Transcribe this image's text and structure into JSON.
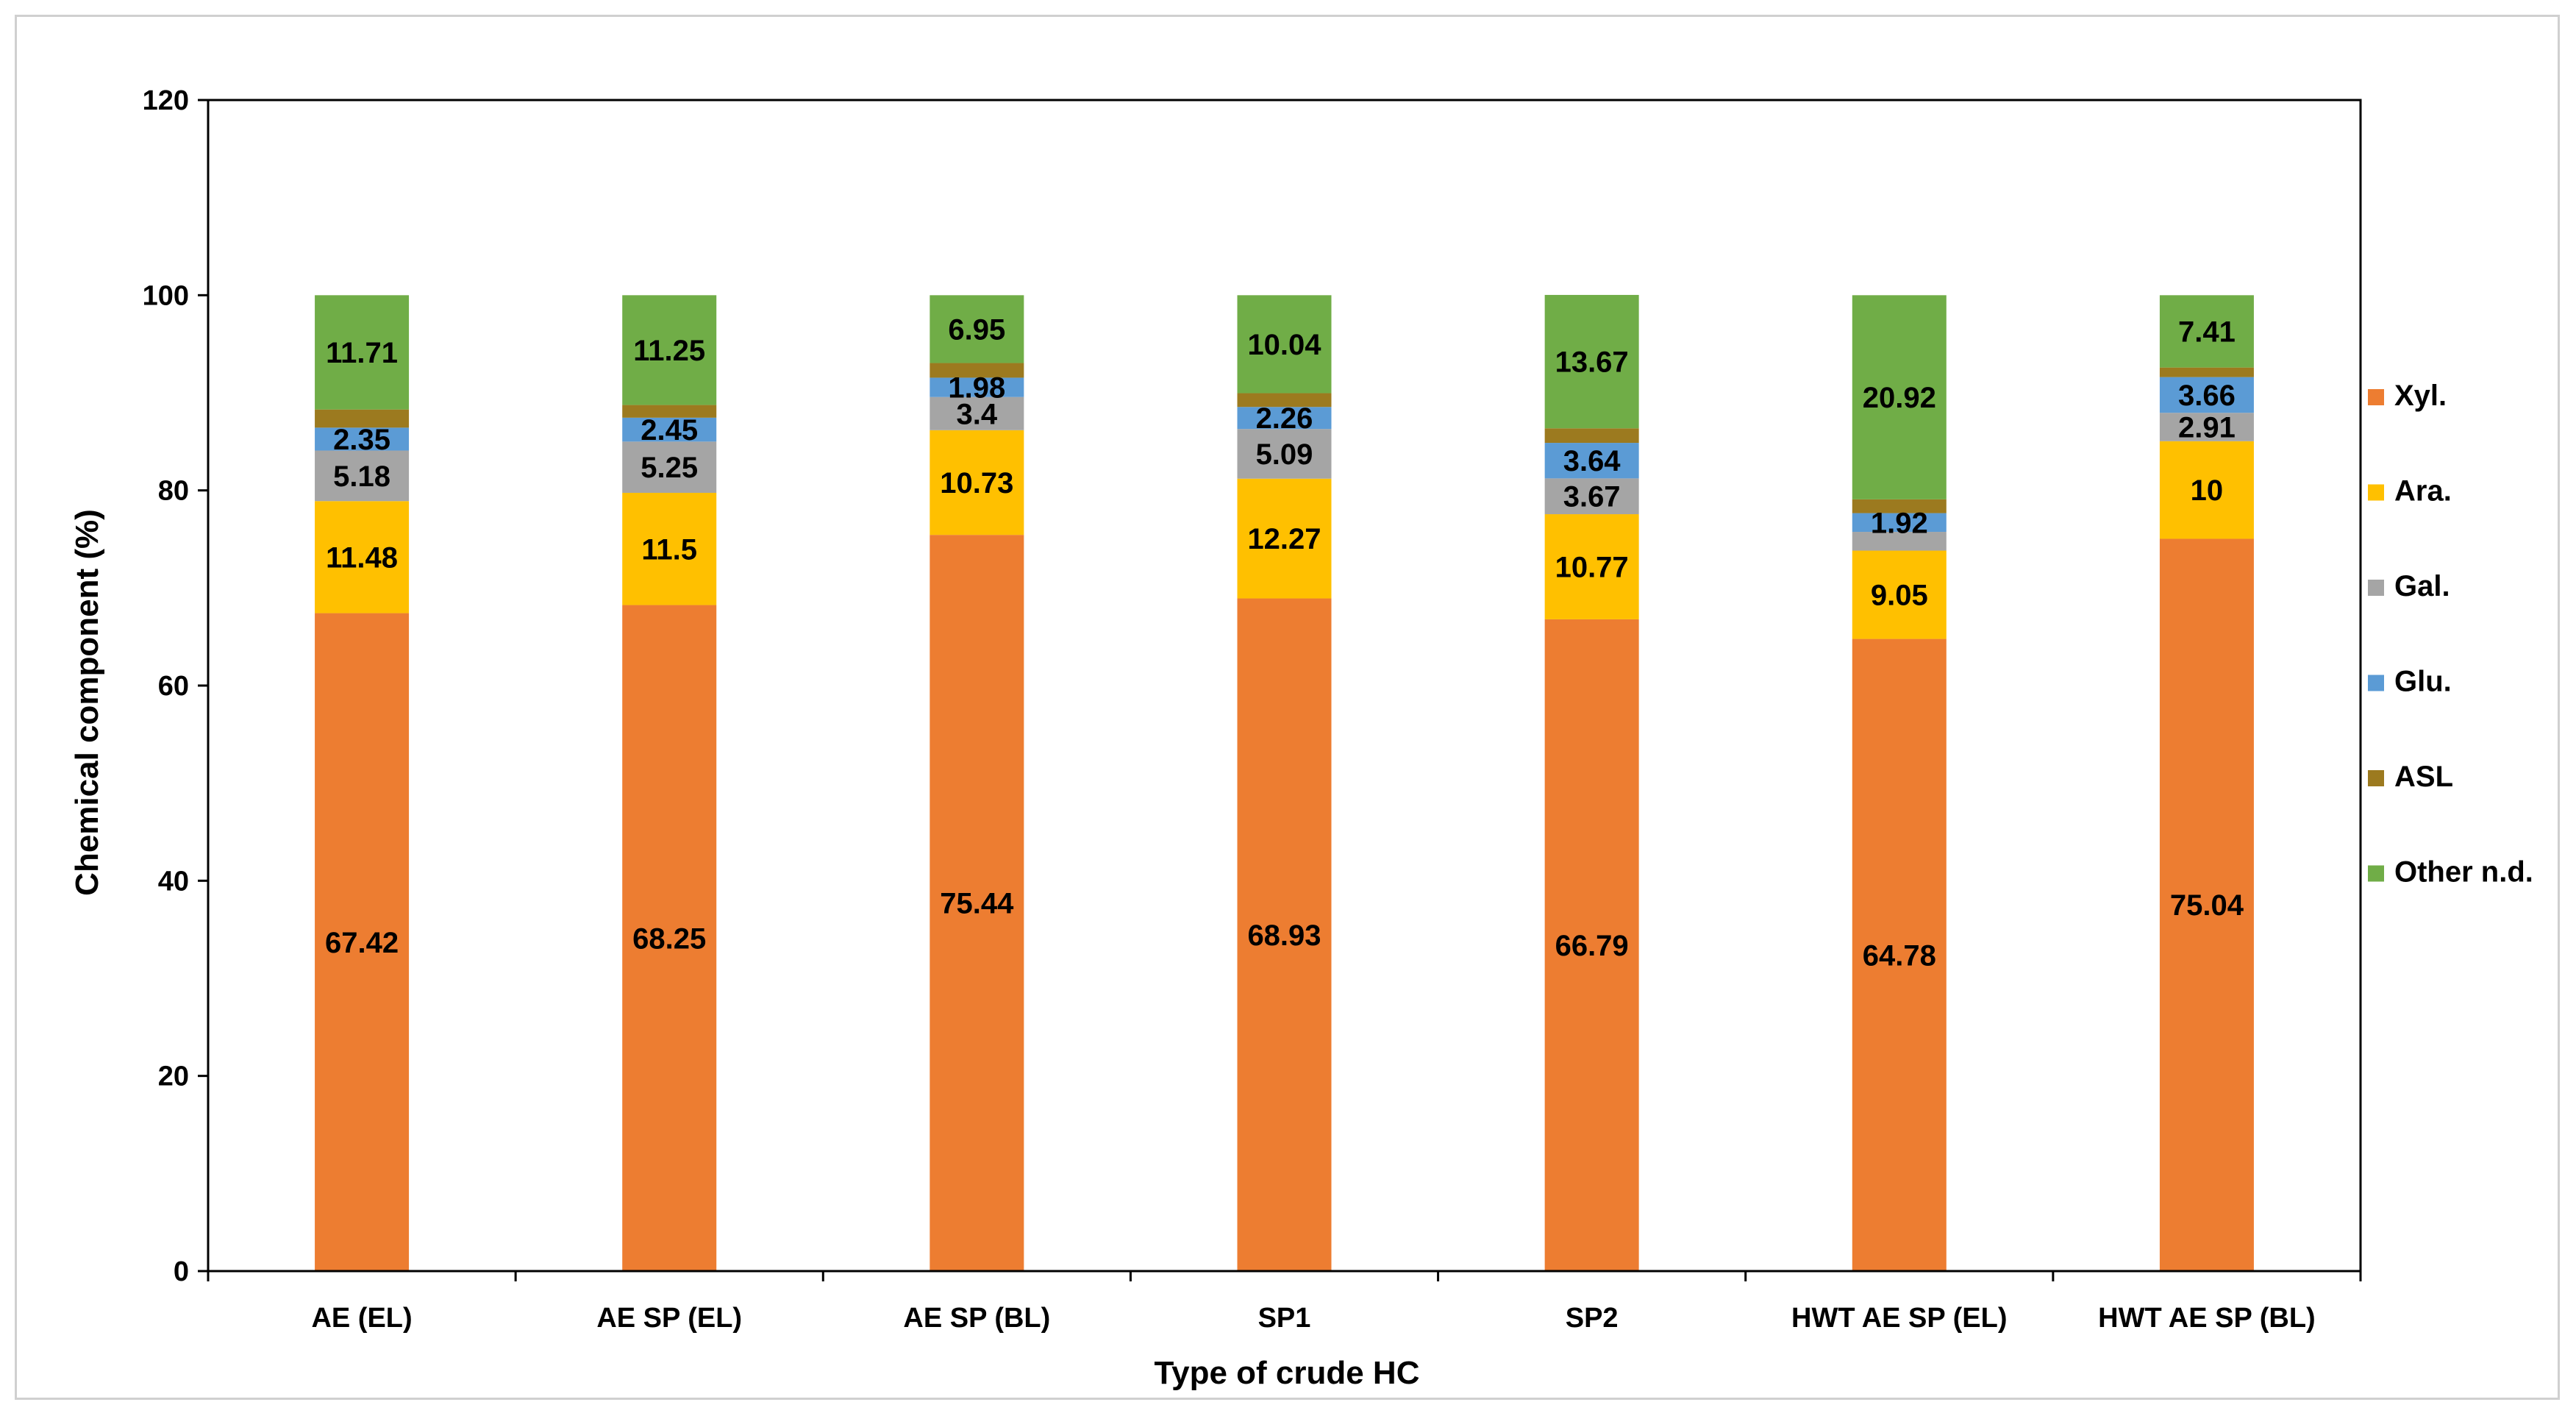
{
  "chart_data": {
    "type": "bar",
    "stacked": true,
    "title": "",
    "xlabel": "Type of crude HC",
    "ylabel": "Chemical component (%)",
    "ylim": [
      0,
      120
    ],
    "yticks": [
      0,
      20,
      40,
      60,
      80,
      100,
      120
    ],
    "grid": false,
    "legend_position": "right",
    "categories": [
      "AE  (EL)",
      "AE SP (EL)",
      "AE SP (BL)",
      "SP1",
      "SP2",
      "HWT AE SP (EL)",
      "HWT AE SP (BL)"
    ],
    "series": [
      {
        "name": "Xyl.",
        "color": "#ED7D31",
        "values": [
          67.42,
          68.25,
          75.44,
          68.93,
          66.79,
          64.78,
          75.04
        ],
        "labels": [
          "67.42",
          "68.25",
          "75.44",
          "68.93",
          "66.79",
          "64.78",
          "75.04"
        ]
      },
      {
        "name": "Ara.",
        "color": "#FFC000",
        "values": [
          11.48,
          11.5,
          10.73,
          12.27,
          10.77,
          9.05,
          10
        ],
        "labels": [
          "11.48",
          "11.5",
          "10.73",
          "12.27",
          "10.77",
          "9.05",
          "10"
        ]
      },
      {
        "name": "Gal.",
        "color": "#A5A5A5",
        "values": [
          5.18,
          5.25,
          3.4,
          5.09,
          3.67,
          1.92,
          2.91
        ],
        "labels": [
          "5.18",
          "5.25",
          "3.4",
          "5.09",
          "3.67",
          "",
          "2.91"
        ]
      },
      {
        "name": "Glu.",
        "color": "#5B9BD5",
        "values": [
          2.35,
          2.45,
          1.98,
          2.26,
          3.64,
          1.92,
          3.66
        ],
        "labels": [
          "2.35",
          "2.45",
          "1.98",
          "2.26",
          "3.64",
          "1.92",
          "3.66"
        ]
      },
      {
        "name": "ASL",
        "color": "#9C7A1F",
        "values": [
          1.86,
          1.3,
          1.5,
          1.41,
          1.49,
          1.41,
          0.98
        ],
        "labels": [
          "",
          "",
          "",
          "",
          "",
          "",
          ""
        ]
      },
      {
        "name": "Other n.d.",
        "color": "#70AD47",
        "values": [
          11.71,
          11.25,
          6.95,
          10.04,
          13.67,
          20.92,
          7.41
        ],
        "labels": [
          "11.71",
          "11.25",
          "6.95",
          "10.04",
          "13.67",
          "20.92",
          "7.41"
        ]
      }
    ]
  }
}
